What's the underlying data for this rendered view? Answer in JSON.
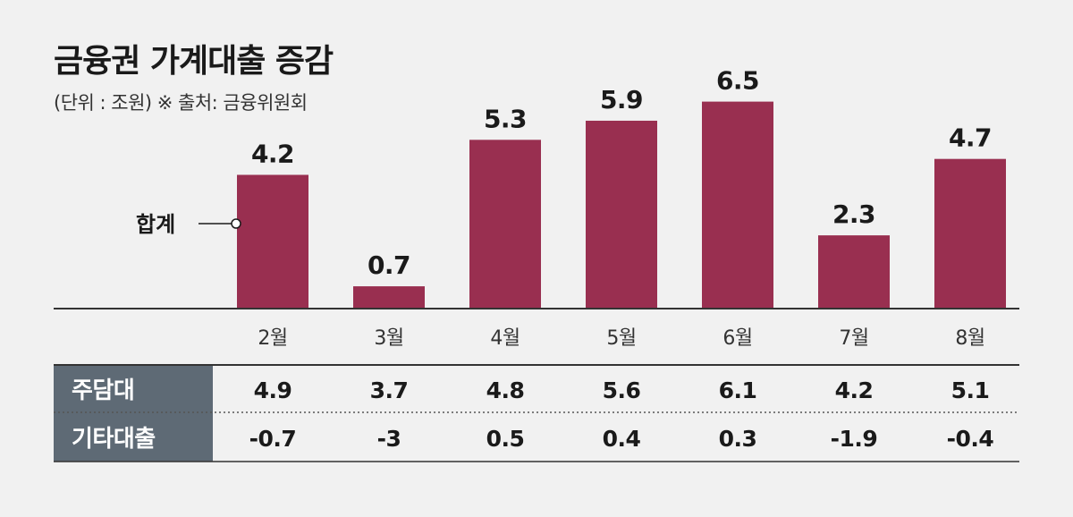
{
  "title": "금융권 가계대출 증감",
  "subtitle": "(단위 : 조원) ※ 출처: 금융위원회",
  "colors": {
    "bar": "#992f50",
    "table_header": "#5e6a75",
    "background": "#f1f1f1"
  },
  "chart_data": {
    "type": "bar",
    "categories": [
      "2월",
      "3월",
      "4월",
      "5월",
      "6월",
      "7월",
      "8월"
    ],
    "series": [
      {
        "name": "합계",
        "values": [
          4.2,
          0.7,
          5.3,
          5.9,
          6.5,
          2.3,
          4.7
        ]
      }
    ],
    "title": "금융권 가계대출 증감",
    "ylim": [
      0,
      7
    ],
    "grid": false,
    "legend_label": "합계",
    "table": {
      "rows": [
        {
          "label": "주담대",
          "values": [
            "4.9",
            "3.7",
            "4.8",
            "5.6",
            "6.1",
            "4.2",
            "5.1"
          ]
        },
        {
          "label": "기타대출",
          "values": [
            "-0.7",
            "-3",
            "0.5",
            "0.4",
            "0.3",
            "-1.9",
            "-0.4"
          ]
        }
      ]
    }
  }
}
